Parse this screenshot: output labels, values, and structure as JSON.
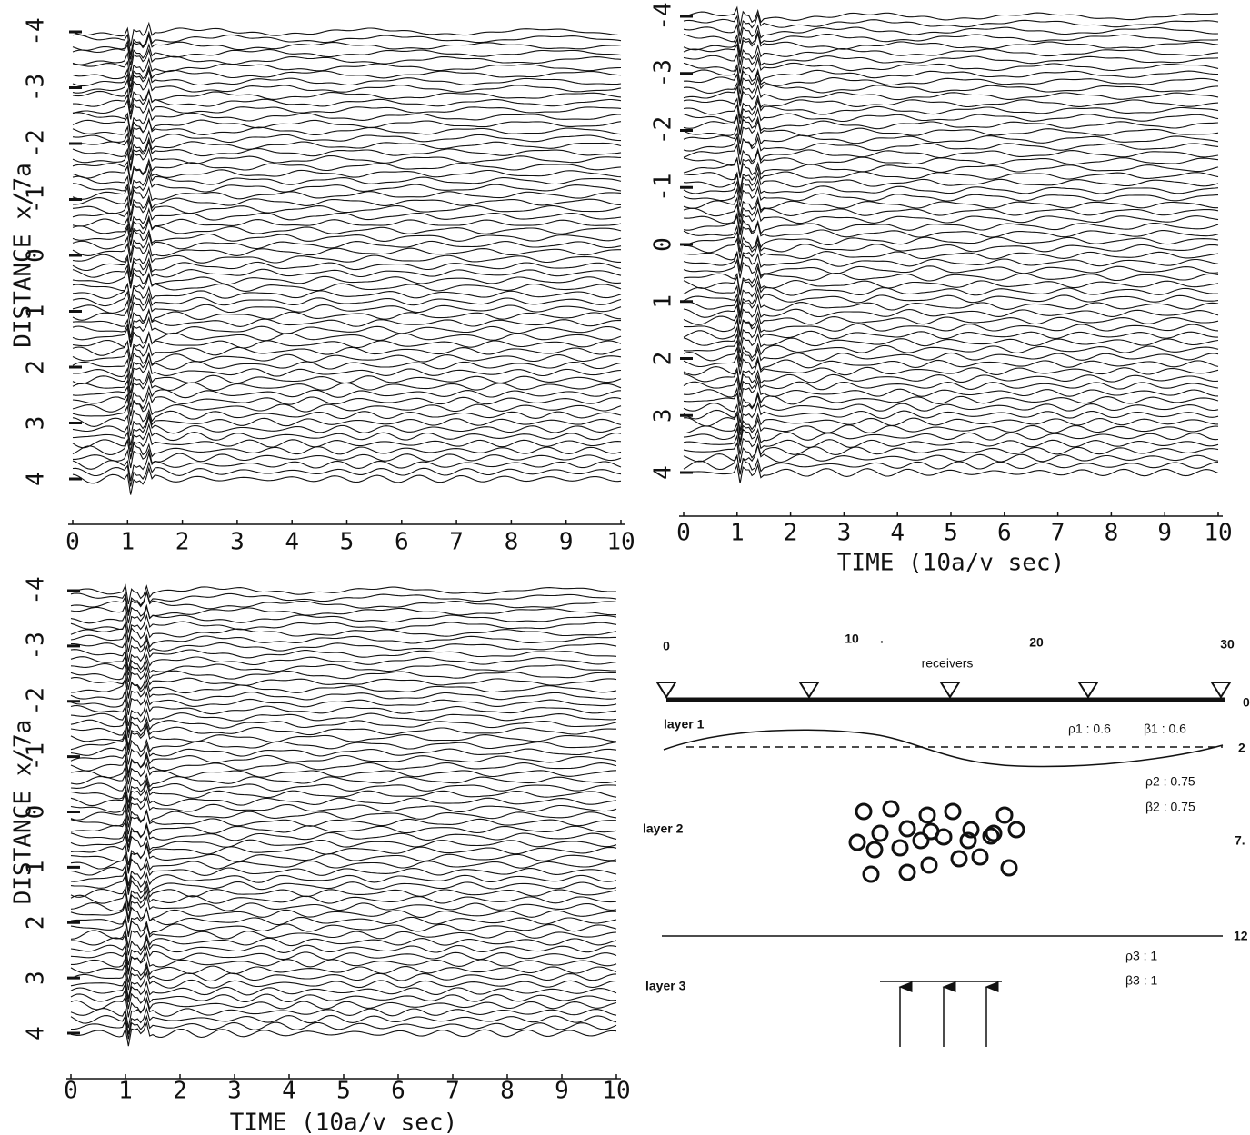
{
  "chart_data": [
    {
      "type": "wiggle",
      "xlim": [
        0,
        10
      ],
      "xticks": [
        0,
        1,
        2,
        3,
        4,
        5,
        6,
        7,
        8,
        9,
        10
      ],
      "ylim": [
        -4,
        4
      ],
      "yticks": [
        -4,
        -3,
        -2,
        -1,
        0,
        1,
        2,
        3,
        4
      ],
      "ylabel": "DISTANCE x/7a"
    },
    {
      "type": "wiggle",
      "xlim": [
        0,
        10
      ],
      "xticks": [
        0,
        1,
        2,
        3,
        4,
        5,
        6,
        7,
        8,
        9,
        10
      ],
      "ylim": [
        -4,
        4
      ],
      "yticks": [
        -4,
        -3,
        -2,
        -1,
        0,
        1,
        2,
        3,
        4
      ],
      "xlabel": "TIME (10a/v sec)"
    },
    {
      "type": "wiggle",
      "xlim": [
        0,
        10
      ],
      "xticks": [
        0,
        1,
        2,
        3,
        4,
        5,
        6,
        7,
        8,
        9,
        10
      ],
      "ylim": [
        -4,
        4
      ],
      "yticks": [
        -4,
        -3,
        -2,
        -1,
        0,
        1,
        2,
        3,
        4
      ],
      "xlabel": "TIME (10a/v sec)",
      "ylabel": "DISTANCE x/7a"
    }
  ],
  "diagram": {
    "scale": [
      "0",
      "10",
      "20",
      "30"
    ],
    "dot": ".",
    "receivers": "receivers",
    "depths": [
      "0",
      "2",
      "7.",
      "12"
    ],
    "layer1": {
      "label": "layer 1",
      "rho": "ρ1 : 0.6",
      "beta": "β1 : 0.6"
    },
    "layer2": {
      "label": "layer 2",
      "rho": "ρ2 : 0.75",
      "beta": "β2 : 0.75"
    },
    "layer3": {
      "label": "layer 3",
      "rho": "ρ3 : 1",
      "beta": "β3 : 1"
    }
  }
}
